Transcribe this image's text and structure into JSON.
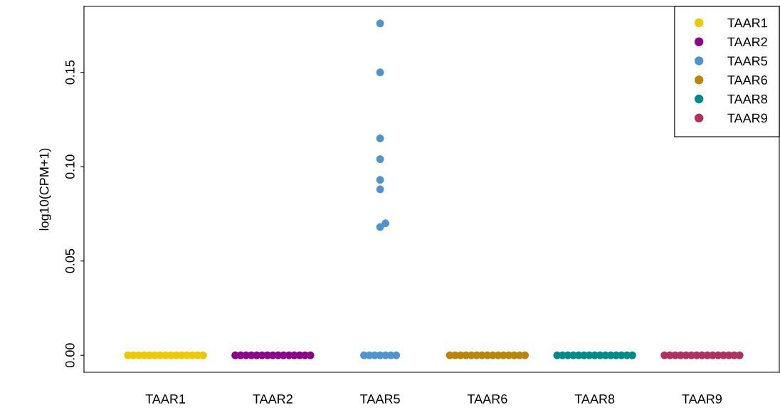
{
  "chart_data": {
    "type": "scatter",
    "ylabel": "log10(CPM+1)",
    "categories": [
      "TAAR1",
      "TAAR2",
      "TAAR5",
      "TAAR6",
      "TAAR8",
      "TAAR9"
    ],
    "series": [
      {
        "name": "TAAR1",
        "color": "#eec900",
        "x": [
          "TAAR1",
          "TAAR1",
          "TAAR1",
          "TAAR1",
          "TAAR1",
          "TAAR1",
          "TAAR1",
          "TAAR1",
          "TAAR1",
          "TAAR1",
          "TAAR1",
          "TAAR1",
          "TAAR1",
          "TAAR1",
          "TAAR1"
        ],
        "values": [
          0,
          0,
          0,
          0,
          0,
          0,
          0,
          0,
          0,
          0,
          0,
          0,
          0,
          0,
          0
        ]
      },
      {
        "name": "TAAR2",
        "color": "#8b008b",
        "x": [
          "TAAR2",
          "TAAR2",
          "TAAR2",
          "TAAR2",
          "TAAR2",
          "TAAR2",
          "TAAR2",
          "TAAR2",
          "TAAR2",
          "TAAR2",
          "TAAR2",
          "TAAR2",
          "TAAR2",
          "TAAR2",
          "TAAR2"
        ],
        "values": [
          0,
          0,
          0,
          0,
          0,
          0,
          0,
          0,
          0,
          0,
          0,
          0,
          0,
          0,
          0
        ]
      },
      {
        "name": "TAAR5",
        "color": "#4f94cd",
        "x": [
          "TAAR5",
          "TAAR5",
          "TAAR5",
          "TAAR5",
          "TAAR5",
          "TAAR5",
          "TAAR5",
          "TAAR5",
          "TAAR5",
          "TAAR5",
          "TAAR5",
          "TAAR5",
          "TAAR5",
          "TAAR5",
          "TAAR5"
        ],
        "values": [
          0,
          0,
          0,
          0,
          0,
          0,
          0,
          0.176,
          0.15,
          0.115,
          0.104,
          0.093,
          0.088,
          0.068,
          0.07
        ]
      },
      {
        "name": "TAAR6",
        "color": "#b8860b",
        "x": [
          "TAAR6",
          "TAAR6",
          "TAAR6",
          "TAAR6",
          "TAAR6",
          "TAAR6",
          "TAAR6",
          "TAAR6",
          "TAAR6",
          "TAAR6",
          "TAAR6",
          "TAAR6",
          "TAAR6",
          "TAAR6",
          "TAAR6"
        ],
        "values": [
          0,
          0,
          0,
          0,
          0,
          0,
          0,
          0,
          0,
          0,
          0,
          0,
          0,
          0,
          0
        ]
      },
      {
        "name": "TAAR8",
        "color": "#008b8b",
        "x": [
          "TAAR8",
          "TAAR8",
          "TAAR8",
          "TAAR8",
          "TAAR8",
          "TAAR8",
          "TAAR8",
          "TAAR8",
          "TAAR8",
          "TAAR8",
          "TAAR8",
          "TAAR8",
          "TAAR8",
          "TAAR8",
          "TAAR8"
        ],
        "values": [
          0,
          0,
          0,
          0,
          0,
          0,
          0,
          0,
          0,
          0,
          0,
          0,
          0,
          0,
          0
        ]
      },
      {
        "name": "TAAR9",
        "color": "#b03060",
        "x": [
          "TAAR9",
          "TAAR9",
          "TAAR9",
          "TAAR9",
          "TAAR9",
          "TAAR9",
          "TAAR9",
          "TAAR9",
          "TAAR9",
          "TAAR9",
          "TAAR9",
          "TAAR9",
          "TAAR9",
          "TAAR9",
          "TAAR9"
        ],
        "values": [
          0,
          0,
          0,
          0,
          0,
          0,
          0,
          0,
          0,
          0,
          0,
          0,
          0,
          0,
          0
        ]
      }
    ],
    "ylim": [
      -0.009,
      0.185
    ],
    "yticks": [
      {
        "value": 0,
        "label": "0.00"
      },
      {
        "value": 0.05,
        "label": "0.05"
      },
      {
        "value": 0.1,
        "label": "0.10"
      },
      {
        "value": 0.15,
        "label": "0.15"
      }
    ],
    "grid": false,
    "legend": "top right",
    "marker": "circle"
  }
}
